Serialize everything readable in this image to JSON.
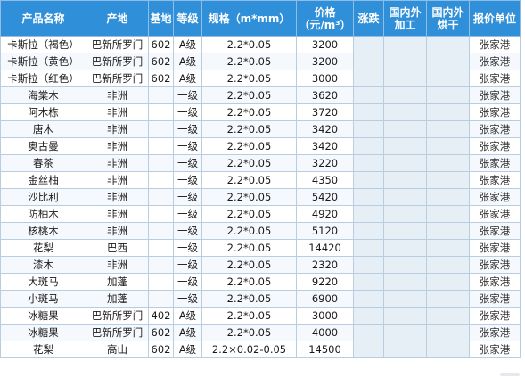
{
  "table": {
    "headers": {
      "name": "产品名称",
      "origin": "产地",
      "base": "基地",
      "grade": "等级",
      "spec": "规格（m*mm）",
      "price_line1": "价格",
      "price_line2": "（元/m³）",
      "change": "涨跌",
      "proc_line1": "国内外",
      "proc_line2": "加工",
      "dry_line1": "国内外",
      "dry_line2": "烘干",
      "unit": "报价单位"
    },
    "rows": [
      {
        "name": "卡斯拉（褐色）",
        "origin": "巴新所罗门",
        "base": "602",
        "grade": "A级",
        "spec": "2.2*0.05",
        "price": "3200",
        "unit": "张家港"
      },
      {
        "name": "卡斯拉（黄色）",
        "origin": "巴新所罗门",
        "base": "602",
        "grade": "A级",
        "spec": "2.2*0.05",
        "price": "3200",
        "unit": "张家港"
      },
      {
        "name": "卡斯拉（红色）",
        "origin": "巴新所罗门",
        "base": "602",
        "grade": "A级",
        "spec": "2.2*0.05",
        "price": "3000",
        "unit": "张家港"
      },
      {
        "name": "海棠木",
        "origin": "非洲",
        "base": "",
        "grade": "一级",
        "spec": "2.2*0.05",
        "price": "3620",
        "unit": "张家港"
      },
      {
        "name": "阿木栋",
        "origin": "非洲",
        "base": "",
        "grade": "一级",
        "spec": "2.2*0.05",
        "price": "3720",
        "unit": "张家港"
      },
      {
        "name": "唐木",
        "origin": "非洲",
        "base": "",
        "grade": "一级",
        "spec": "2.2*0.05",
        "price": "3420",
        "unit": "张家港"
      },
      {
        "name": "奥古曼",
        "origin": "非洲",
        "base": "",
        "grade": "一级",
        "spec": "2.2*0.05",
        "price": "3420",
        "unit": "张家港"
      },
      {
        "name": "春茶",
        "origin": "非洲",
        "base": "",
        "grade": "一级",
        "spec": "2.2*0.05",
        "price": "3220",
        "unit": "张家港"
      },
      {
        "name": "金丝柚",
        "origin": "非洲",
        "base": "",
        "grade": "一级",
        "spec": "2.2*0.05",
        "price": "4350",
        "unit": "张家港"
      },
      {
        "name": "沙比利",
        "origin": "非洲",
        "base": "",
        "grade": "一级",
        "spec": "2.2*0.05",
        "price": "5420",
        "unit": "张家港"
      },
      {
        "name": "防柚木",
        "origin": "非洲",
        "base": "",
        "grade": "一级",
        "spec": "2.2*0.05",
        "price": "4920",
        "unit": "张家港"
      },
      {
        "name": "核桃木",
        "origin": "非洲",
        "base": "",
        "grade": "一级",
        "spec": "2.2*0.05",
        "price": "5120",
        "unit": "张家港"
      },
      {
        "name": "花梨",
        "origin": "巴西",
        "base": "",
        "grade": "一级",
        "spec": "2.2*0.05",
        "price": "14420",
        "unit": "张家港"
      },
      {
        "name": "漆木",
        "origin": "非洲",
        "base": "",
        "grade": "一级",
        "spec": "2.2*0.05",
        "price": "2320",
        "unit": "张家港"
      },
      {
        "name": "大斑马",
        "origin": "加蓬",
        "base": "",
        "grade": "一级",
        "spec": "2.2*0.05",
        "price": "9220",
        "unit": "张家港"
      },
      {
        "name": "小斑马",
        "origin": "加蓬",
        "base": "",
        "grade": "一级",
        "spec": "2.2*0.05",
        "price": "6900",
        "unit": "张家港"
      },
      {
        "name": "冰糖果",
        "origin": "巴新所罗门",
        "base": "402",
        "grade": "A级",
        "spec": "2.2*0.05",
        "price": "3000",
        "unit": "张家港"
      },
      {
        "name": "冰糖果",
        "origin": "巴新所罗门",
        "base": "602",
        "grade": "A级",
        "spec": "2.2*0.05",
        "price": "4000",
        "unit": "张家港"
      },
      {
        "name": "花梨",
        "origin": "高山",
        "base": "602",
        "grade": "A级",
        "spec": "2.2×0.02-0.05",
        "price": "14500",
        "unit": "张家港"
      }
    ]
  }
}
